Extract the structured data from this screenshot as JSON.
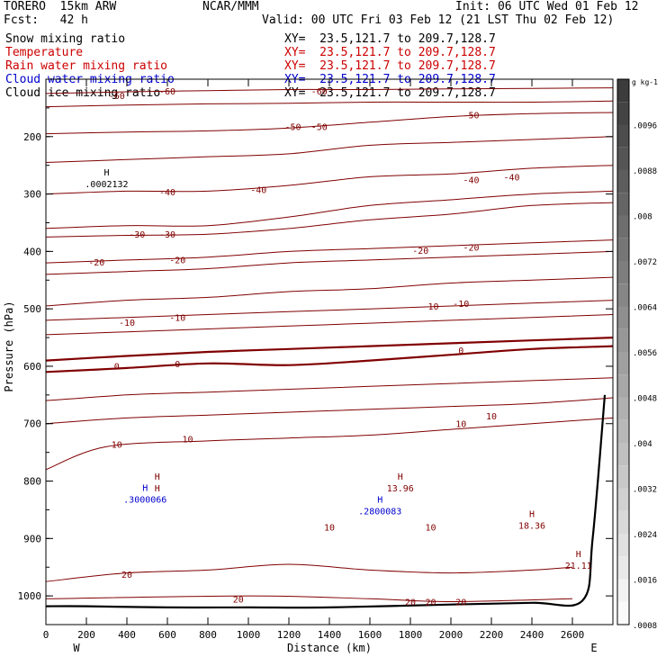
{
  "header": {
    "model": "TORERO  15km ARW",
    "org": "NCAR/MMM",
    "init": "Init: 06 UTC Wed 01 Feb 12",
    "fcst": "Fcst:   42 h",
    "valid": "Valid: 00 UTC Fri 03 Feb 12 (21 LST Thu 02 Feb 12)"
  },
  "fields": [
    {
      "label": "Snow mixing ratio",
      "xy": "XY=  23.5,121.7 to 209.7,128.7",
      "color": "#000000"
    },
    {
      "label": "Temperature",
      "xy": "XY=  23.5,121.7 to 209.7,128.7",
      "color": "#cc0000"
    },
    {
      "label": "Rain water mixing ratio",
      "xy": "XY=  23.5,121.7 to 209.7,128.7",
      "color": "#cc0000"
    },
    {
      "label": "Cloud water mixing ratio",
      "xy": "XY=  23.5,121.7 to 209.7,128.7",
      "color": "#0000cc"
    },
    {
      "label": "Cloud ice mixing ratio",
      "xy": "XY=  23.5,121.7 to 209.7,128.7",
      "color": "#000000"
    }
  ],
  "chart_data": {
    "type": "line",
    "title": "",
    "xlabel": "Distance (km)",
    "ylabel": "Pressure (hPa)",
    "xlim": [
      0,
      2800
    ],
    "ylim": [
      1050,
      100
    ],
    "x_ticks": [
      0,
      200,
      400,
      600,
      800,
      1000,
      1200,
      1400,
      1600,
      1800,
      2000,
      2200,
      2400,
      2600
    ],
    "y_ticks": [
      200,
      300,
      400,
      500,
      600,
      700,
      800,
      900,
      1000
    ],
    "x_end_labels": {
      "left": "W",
      "right": "E"
    },
    "contour_color": "#800000",
    "series": [
      {
        "name": "-60",
        "x": [
          0,
          400,
          800,
          1200,
          1600,
          2000,
          2400,
          2800
        ],
        "y": [
          125,
          122,
          120,
          118,
          118,
          117,
          116,
          115
        ]
      },
      {
        "name": "-60",
        "x": [
          0,
          400,
          800,
          1200,
          1600,
          2000,
          2400,
          2800
        ],
        "y": [
          148,
          145,
          143,
          142,
          140,
          140,
          140,
          138
        ]
      },
      {
        "name": "-50",
        "x": [
          0,
          400,
          800,
          1200,
          1600,
          2000,
          2400,
          2800
        ],
        "y": [
          195,
          192,
          190,
          185,
          175,
          165,
          160,
          158
        ]
      },
      {
        "name": "-50",
        "x": [
          0,
          400,
          800,
          1200,
          1600,
          2000,
          2400,
          2800
        ],
        "y": [
          245,
          240,
          235,
          230,
          215,
          210,
          205,
          200
        ]
      },
      {
        "name": "-40",
        "x": [
          0,
          400,
          800,
          1200,
          1600,
          2000,
          2400,
          2800
        ],
        "y": [
          300,
          295,
          295,
          285,
          270,
          265,
          255,
          250
        ]
      },
      {
        "name": "-30",
        "x": [
          0,
          400,
          800,
          1200,
          1600,
          2000,
          2400,
          2800
        ],
        "y": [
          360,
          355,
          355,
          340,
          320,
          310,
          300,
          295
        ]
      },
      {
        "name": "-30",
        "x": [
          0,
          400,
          800,
          1200,
          1600,
          2000,
          2400,
          2800
        ],
        "y": [
          375,
          372,
          370,
          360,
          345,
          335,
          320,
          315
        ]
      },
      {
        "name": "-20",
        "x": [
          0,
          400,
          800,
          1200,
          1600,
          2000,
          2400,
          2800
        ],
        "y": [
          420,
          415,
          410,
          400,
          395,
          390,
          385,
          380
        ]
      },
      {
        "name": "-20",
        "x": [
          0,
          400,
          800,
          1200,
          1600,
          2000,
          2400,
          2800
        ],
        "y": [
          440,
          435,
          430,
          420,
          415,
          410,
          405,
          400
        ]
      },
      {
        "name": "-10",
        "x": [
          0,
          400,
          800,
          1200,
          1600,
          2000,
          2400,
          2800
        ],
        "y": [
          495,
          485,
          480,
          470,
          465,
          455,
          450,
          445
        ]
      },
      {
        "name": "-10",
        "x": [
          0,
          400,
          800,
          1200,
          1600,
          2000,
          2400,
          2800
        ],
        "y": [
          520,
          515,
          510,
          505,
          500,
          495,
          490,
          485
        ]
      },
      {
        "name": "-10",
        "x": [
          0,
          400,
          800,
          1200,
          1600,
          2000,
          2400,
          2800
        ],
        "y": [
          545,
          540,
          535,
          530,
          525,
          520,
          515,
          510
        ]
      },
      {
        "name": "0",
        "x": [
          0,
          400,
          800,
          1200,
          1600,
          2000,
          2400,
          2800
        ],
        "y": [
          590,
          582,
          575,
          570,
          565,
          560,
          555,
          550
        ]
      },
      {
        "name": "0",
        "x": [
          0,
          400,
          800,
          1200,
          1600,
          2000,
          2400,
          2800
        ],
        "y": [
          610,
          603,
          595,
          598,
          590,
          580,
          570,
          565
        ]
      },
      {
        "name": "10",
        "x": [
          0,
          400,
          800,
          1200,
          1600,
          2000,
          2400,
          2800
        ],
        "y": [
          660,
          650,
          645,
          640,
          635,
          630,
          625,
          620
        ]
      },
      {
        "name": "10",
        "x": [
          0,
          400,
          800,
          1200,
          1600,
          2000,
          2400,
          2800
        ],
        "y": [
          700,
          690,
          685,
          680,
          675,
          670,
          665,
          655
        ]
      },
      {
        "name": "10",
        "x": [
          0,
          300,
          800,
          1200,
          1600,
          2000,
          2400,
          2800
        ],
        "y": [
          780,
          740,
          730,
          725,
          720,
          710,
          700,
          690
        ]
      },
      {
        "name": "20",
        "x": [
          0,
          400,
          800,
          1200,
          1600,
          2000,
          2400,
          2600
        ],
        "y": [
          975,
          960,
          955,
          945,
          955,
          960,
          955,
          950
        ]
      },
      {
        "name": "20",
        "x": [
          0,
          1000,
          1600,
          2000,
          2600
        ],
        "y": [
          1005,
          1000,
          1005,
          1010,
          1005
        ]
      }
    ],
    "surface": {
      "name": "terrain",
      "x": [
        0,
        200,
        600,
        1000,
        1400,
        2000,
        2400,
        2650,
        2700,
        2760
      ],
      "y": [
        1018,
        1018,
        1020,
        1020,
        1020,
        1015,
        1012,
        1008,
        900,
        650
      ]
    },
    "contour_labels": [
      {
        "text": "-60",
        "x": 350,
        "y": 128
      },
      {
        "text": "-60",
        "x": 600,
        "y": 120
      },
      {
        "text": "-60",
        "x": 1350,
        "y": 120
      },
      {
        "text": "-50",
        "x": 1220,
        "y": 182
      },
      {
        "text": "-50",
        "x": 1350,
        "y": 182
      },
      {
        "text": "-50",
        "x": 2100,
        "y": 162
      },
      {
        "text": "-40",
        "x": 600,
        "y": 296
      },
      {
        "text": "-40",
        "x": 1050,
        "y": 292
      },
      {
        "text": "-40",
        "x": 2100,
        "y": 275
      },
      {
        "text": "-40",
        "x": 2300,
        "y": 270
      },
      {
        "text": "-30",
        "x": 450,
        "y": 370
      },
      {
        "text": "-30",
        "x": 600,
        "y": 370
      },
      {
        "text": "-20",
        "x": 250,
        "y": 418
      },
      {
        "text": "-20",
        "x": 650,
        "y": 414
      },
      {
        "text": "-20",
        "x": 1850,
        "y": 398
      },
      {
        "text": "-20",
        "x": 2100,
        "y": 392
      },
      {
        "text": "-10",
        "x": 400,
        "y": 523
      },
      {
        "text": "-10",
        "x": 650,
        "y": 515
      },
      {
        "text": "-10",
        "x": 1900,
        "y": 495
      },
      {
        "text": "-10",
        "x": 2050,
        "y": 490
      },
      {
        "text": "0",
        "x": 350,
        "y": 599
      },
      {
        "text": "0",
        "x": 650,
        "y": 595
      },
      {
        "text": "0",
        "x": 2050,
        "y": 572
      },
      {
        "text": "10",
        "x": 350,
        "y": 736
      },
      {
        "text": "10",
        "x": 700,
        "y": 726
      },
      {
        "text": "10",
        "x": 2050,
        "y": 700
      },
      {
        "text": "10",
        "x": 2200,
        "y": 686
      },
      {
        "text": "10",
        "x": 1400,
        "y": 880
      },
      {
        "text": "10",
        "x": 1900,
        "y": 880
      },
      {
        "text": "20",
        "x": 400,
        "y": 962
      },
      {
        "text": "20",
        "x": 950,
        "y": 1005
      },
      {
        "text": "20",
        "x": 1800,
        "y": 1010
      },
      {
        "text": "20",
        "x": 1900,
        "y": 1010
      },
      {
        "text": "20",
        "x": 2050,
        "y": 1010
      }
    ],
    "extrema": [
      {
        "mark": "H",
        "value": ".0002132",
        "x": 300,
        "y": 280,
        "color": "#000000"
      },
      {
        "mark": "H",
        "value": "13.96",
        "x": 1750,
        "y": 810,
        "color": "#800000"
      },
      {
        "mark": "H",
        "value": "18.36",
        "x": 2400,
        "y": 875,
        "color": "#800000"
      },
      {
        "mark": "H",
        "value": "21.11",
        "x": 2630,
        "y": 945,
        "color": "#800000"
      },
      {
        "mark": "H",
        "value": ".3000066",
        "x": 490,
        "y": 830,
        "color": "#0000cc"
      },
      {
        "mark": "H",
        "value": "H",
        "x": 550,
        "y": 810,
        "color": "#800000"
      },
      {
        "mark": "H",
        "value": ".2800083",
        "x": 1650,
        "y": 850,
        "color": "#0000cc"
      }
    ],
    "colorbar": {
      "unit": "g kg-1",
      "ticks": [
        ".0096",
        ".0088",
        ".008",
        ".0072",
        ".0064",
        ".0056",
        ".0048",
        ".004",
        ".0032",
        ".0024",
        ".0016",
        ".0008"
      ],
      "levels": 24
    }
  }
}
